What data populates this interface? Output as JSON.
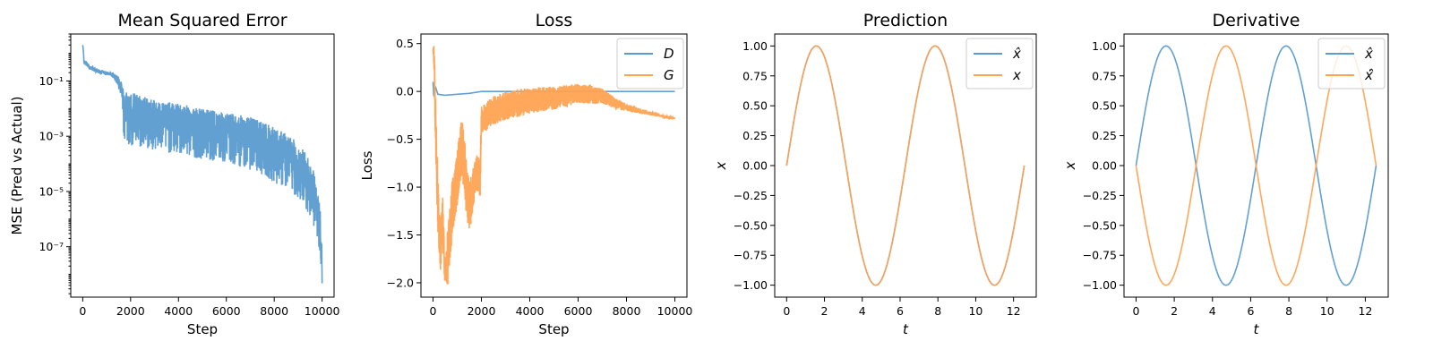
{
  "chart_data": [
    {
      "id": "mse",
      "type": "line",
      "title": "Mean Squared Error",
      "xlabel": "Step",
      "ylabel": "MSE (Pred vs Actual)",
      "yscale": "log",
      "xlim": [
        -500,
        10500
      ],
      "ylim": [
        1.5e-09,
        5
      ],
      "xticks": [
        0,
        2000,
        4000,
        6000,
        8000,
        10000
      ],
      "xtick_labels": [
        "0",
        "2000",
        "4000",
        "6000",
        "8000",
        "10000"
      ],
      "yticks": [
        0.1,
        0.001,
        1e-05,
        1e-07
      ],
      "ytick_labels": [
        "10⁻¹",
        "10⁻³",
        "10⁻⁵",
        "10⁻⁷"
      ],
      "series": [
        {
          "color": "#5b9bd0",
          "description": "noisy log-decaying band",
          "x": [
            0,
            50,
            300,
            700,
            1200,
            1500,
            1700,
            2000,
            3000,
            4000,
            5000,
            6000,
            7000,
            8000,
            9000,
            9500,
            9800,
            9950,
            10000
          ],
          "y": [
            2.0,
            0.5,
            0.3,
            0.22,
            0.18,
            0.12,
            0.01,
            0.006,
            0.004,
            0.003,
            0.002,
            0.0015,
            0.0008,
            0.0003,
            6e-05,
            1.5e-05,
            1e-06,
            5e-08,
            5e-09
          ],
          "band_low": [
            2.0,
            0.4,
            0.25,
            0.18,
            0.15,
            0.05,
            0.0005,
            0.0004,
            0.0003,
            0.0002,
            0.00015,
            0.0001,
            6e-05,
            2e-05,
            5e-06,
            1e-06,
            1e-07,
            1e-08,
            4e-09
          ],
          "band_high": [
            2.0,
            0.6,
            0.35,
            0.25,
            0.2,
            0.15,
            0.05,
            0.04,
            0.02,
            0.015,
            0.01,
            0.007,
            0.005,
            0.002,
            0.0005,
            0.0001,
            1e-05,
            5e-07,
            1e-08
          ]
        }
      ],
      "grid": false,
      "legend": "none"
    },
    {
      "id": "loss",
      "type": "line",
      "title": "Loss",
      "xlabel": "Step",
      "ylabel": "Loss",
      "xlim": [
        -500,
        10500
      ],
      "ylim": [
        -2.15,
        0.6
      ],
      "xticks": [
        0,
        2000,
        4000,
        6000,
        8000,
        10000
      ],
      "xtick_labels": [
        "0",
        "2000",
        "4000",
        "6000",
        "8000",
        "10000"
      ],
      "yticks": [
        0.5,
        0.0,
        -0.5,
        -1.0,
        -1.5,
        -2.0
      ],
      "ytick_labels": [
        "0.5",
        "0.0",
        "−0.5",
        "−1.0",
        "−1.5",
        "−2.0"
      ],
      "series": [
        {
          "name": "D",
          "color": "#5b9bd0",
          "x": [
            0,
            30,
            100,
            200,
            500,
            1000,
            1500,
            2000,
            3000,
            5000,
            8000,
            10000
          ],
          "y": [
            0.1,
            -0.05,
            0.05,
            -0.03,
            -0.04,
            -0.03,
            -0.02,
            0.0,
            0.0,
            0.0,
            0.0,
            0.0
          ]
        },
        {
          "name": "G",
          "color": "#ffa252",
          "x": [
            0,
            50,
            100,
            200,
            300,
            400,
            500,
            600,
            700,
            800,
            900,
            1000,
            1100,
            1200,
            1300,
            1400,
            1500,
            1600,
            1700,
            1800,
            1950,
            2000,
            2500,
            3000,
            3500,
            4000,
            4500,
            5000,
            5500,
            6000,
            6500,
            7000,
            7500,
            8000,
            8500,
            9000,
            9500,
            10000
          ],
          "y": [
            0.45,
            0.3,
            -0.3,
            -1.2,
            -1.6,
            -1.4,
            -1.9,
            -1.75,
            -1.5,
            -1.2,
            -1.05,
            -0.9,
            -0.7,
            -0.55,
            -0.8,
            -1.05,
            -1.2,
            -1.1,
            -0.95,
            -0.85,
            -0.9,
            -0.3,
            -0.2,
            -0.15,
            -0.12,
            -0.1,
            -0.08,
            -0.07,
            -0.05,
            -0.02,
            -0.03,
            -0.05,
            -0.12,
            -0.17,
            -0.2,
            -0.23,
            -0.26,
            -0.28
          ],
          "noise_amplitude": [
            0.05,
            0.2,
            0.3,
            0.35,
            0.3,
            0.3,
            0.15,
            0.3,
            0.3,
            0.35,
            0.3,
            0.3,
            0.3,
            0.35,
            0.3,
            0.3,
            0.25,
            0.25,
            0.2,
            0.2,
            0.2,
            0.15,
            0.15,
            0.15,
            0.15,
            0.13,
            0.13,
            0.12,
            0.12,
            0.1,
            0.1,
            0.08,
            0.06,
            0.04,
            0.03,
            0.02,
            0.01,
            0.005
          ]
        }
      ],
      "grid": false,
      "legend": "top-right"
    },
    {
      "id": "prediction",
      "type": "line",
      "title": "Prediction",
      "xlabel": "t",
      "ylabel": "x",
      "function": "sin",
      "xlim": [
        -0.63,
        13.2
      ],
      "ylim": [
        -1.1,
        1.1
      ],
      "xticks": [
        0,
        2,
        4,
        6,
        8,
        10,
        12
      ],
      "xtick_labels": [
        "0",
        "2",
        "4",
        "6",
        "8",
        "10",
        "12"
      ],
      "yticks": [
        1.0,
        0.75,
        0.5,
        0.25,
        0.0,
        -0.25,
        -0.5,
        -0.75,
        -1.0
      ],
      "ytick_labels": [
        "1.00",
        "0.75",
        "0.50",
        "0.25",
        "0.00",
        "−0.25",
        "−0.50",
        "−0.75",
        "−1.00"
      ],
      "t_range": [
        0,
        12.566
      ],
      "series": [
        {
          "name": "x̂",
          "color": "#5b9bd0",
          "function": "sin"
        },
        {
          "name": "x",
          "color": "#ffa252",
          "function": "sin"
        }
      ],
      "grid": false,
      "legend": "top-right"
    },
    {
      "id": "derivative",
      "type": "line",
      "title": "Derivative",
      "xlabel": "t",
      "ylabel": "x",
      "xlim": [
        -0.63,
        13.2
      ],
      "ylim": [
        -1.1,
        1.1
      ],
      "xticks": [
        0,
        2,
        4,
        6,
        8,
        10,
        12
      ],
      "xtick_labels": [
        "0",
        "2",
        "4",
        "6",
        "8",
        "10",
        "12"
      ],
      "yticks": [
        1.0,
        0.75,
        0.5,
        0.25,
        0.0,
        -0.25,
        -0.5,
        -0.75,
        -1.0
      ],
      "ytick_labels": [
        "1.00",
        "0.75",
        "0.50",
        "0.25",
        "0.00",
        "−0.25",
        "−0.50",
        "−0.75",
        "−1.00"
      ],
      "t_range": [
        0,
        12.566
      ],
      "series": [
        {
          "name": "x̂",
          "color": "#5b9bd0",
          "function": "sin"
        },
        {
          "name": "ẋ̂",
          "color": "#ffa252",
          "function": "-sin"
        }
      ],
      "grid": false,
      "legend": "top-right"
    }
  ]
}
